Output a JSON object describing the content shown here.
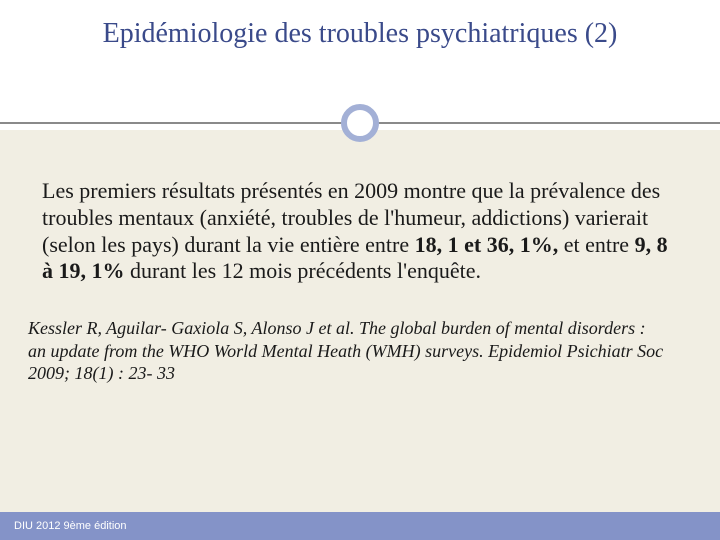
{
  "colors": {
    "title_color": "#3a4a8a",
    "body_bg": "#f1eee3",
    "title_bg": "#ffffff",
    "divider": "#8a8a8a",
    "ring_border": "#a3b0d6",
    "footer_bg": "#8493c8",
    "footer_text": "#ffffff",
    "body_text": "#1a1a1a"
  },
  "typography": {
    "title_fontsize": 28,
    "body_fontsize": 22,
    "citation_fontsize": 18,
    "footer_fontsize": 11,
    "font_family": "Georgia, serif"
  },
  "title": "Epidémiologie des troubles psychiatriques (2)",
  "body": {
    "pre": "Les premiers résultats présentés en 2009 montre que la prévalence des troubles mentaux (anxiété, troubles de l'humeur, addictions) varierait (selon les pays) durant la vie entière entre ",
    "bold1": "18, 1 et 36, 1%,",
    "mid": " et entre ",
    "bold2": "9, 8 à 19, 1%",
    "post": " durant les 12 mois précédents l'enquête."
  },
  "citation": "Kessler R, Aguilar- Gaxiola S, Alonso J et al. The global burden of mental disorders : an update from the WHO World Mental Heath (WMH) surveys. Epidemiol Psichiatr Soc 2009; 18(1) : 23- 33",
  "footer": "DIU 2012 9ème édition"
}
